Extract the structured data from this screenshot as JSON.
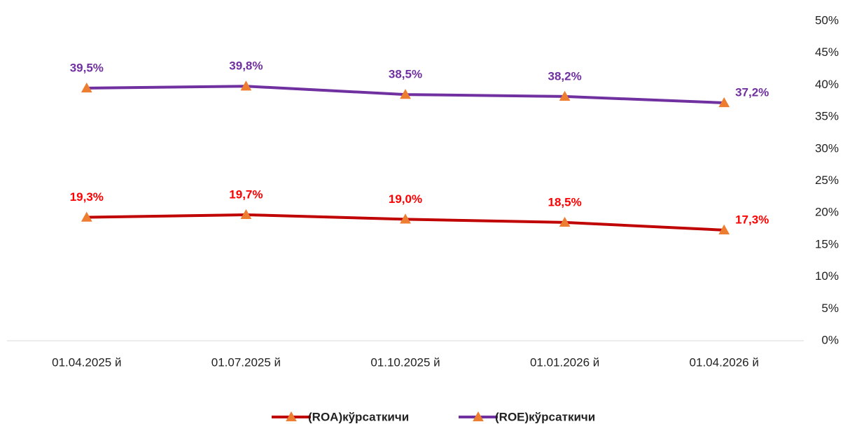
{
  "chart_data": {
    "type": "line",
    "categories": [
      "01.04.2025 й",
      "01.07.2025 й",
      "01.10.2025 й",
      "01.01.2026 й",
      "01.04.2026 й"
    ],
    "series": [
      {
        "name": "(ROA)кўрсаткичи",
        "color": "#c00000",
        "marker_color": "#ed7d31",
        "label_color": "#ff0000",
        "values": [
          19.3,
          19.7,
          19.0,
          18.5,
          17.3
        ],
        "value_labels": [
          "19,3%",
          "19,7%",
          "19,0%",
          "18,5%",
          "17,3%"
        ]
      },
      {
        "name": "(ROE)кўрсаткичи",
        "color": "#7030a0",
        "marker_color": "#ed7d31",
        "label_color": "#7030a0",
        "values": [
          39.5,
          39.8,
          38.5,
          38.2,
          37.2
        ],
        "value_labels": [
          "39,5%",
          "39,8%",
          "38,5%",
          "38,2%",
          "37,2%"
        ]
      }
    ],
    "ylim": [
      0,
      50
    ],
    "yticks": [
      {
        "value": 0,
        "label": "0%"
      },
      {
        "value": 5,
        "label": "5%"
      },
      {
        "value": 10,
        "label": "10%"
      },
      {
        "value": 15,
        "label": "15%"
      },
      {
        "value": 20,
        "label": "20%"
      },
      {
        "value": 25,
        "label": "25%"
      },
      {
        "value": 30,
        "label": "30%"
      },
      {
        "value": 35,
        "label": "35%"
      },
      {
        "value": 40,
        "label": "40%"
      },
      {
        "value": 45,
        "label": "45%"
      },
      {
        "value": 50,
        "label": "50%"
      }
    ],
    "y_axis_side": "right",
    "grid": false,
    "legend": "bottom"
  }
}
